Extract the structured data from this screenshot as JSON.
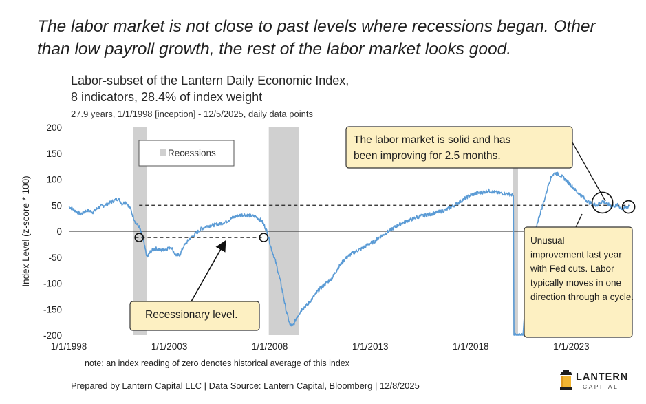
{
  "headline": "The labor market is not close to past levels where recessions began. Other than low payroll growth, the rest of the labor market looks good.",
  "subtitle": {
    "line1": "Labor-subset of the Lantern Daily Economic Index,",
    "line2": "8 indicators, 28.4% of index weight",
    "line3": "27.9 years, 1/1/1998 [inception] - 12/5/2025, daily data points"
  },
  "note": "note: an index reading of zero denotes historical average of this index",
  "footer": "Prepared by Lantern Capital LLC | Data Source: Lantern Capital, Bloomberg | 12/8/2025",
  "logo": {
    "top": "LANTERN",
    "bottom": "CAPITAL"
  },
  "chart_data": {
    "type": "line",
    "ylabel": "Index Level (z-score * 100)",
    "ylim": [
      -200,
      200
    ],
    "yticks": [
      200,
      150,
      100,
      50,
      0,
      -50,
      -100,
      -150,
      -200
    ],
    "xlim": [
      1998.0,
      2026.0
    ],
    "xticks": [
      {
        "label": "1/1/1998",
        "x": 1998.0
      },
      {
        "label": "1/1/2003",
        "x": 2003.0
      },
      {
        "label": "1/1/2008",
        "x": 2008.0
      },
      {
        "label": "1/1/2013",
        "x": 2013.0
      },
      {
        "label": "1/1/2018",
        "x": 2018.0
      },
      {
        "label": "1/1/2023",
        "x": 2023.0
      }
    ],
    "line_color": "#5b9bd5",
    "recession_color": "#d0d0d0",
    "grid": false,
    "legend": {
      "position": "top-left",
      "label": "Recessions"
    },
    "recessions": [
      [
        2001.2,
        2001.9
      ],
      [
        2007.95,
        2009.45
      ],
      [
        2020.1,
        2020.35
      ]
    ],
    "reference_lines": [
      {
        "y": 50,
        "x_from": 2001.5,
        "x_to": 2025.9,
        "style": "dashed"
      },
      {
        "y": -12,
        "x_from": 2001.3,
        "x_to": 2007.6,
        "style": "dashed"
      }
    ],
    "series": [
      {
        "values": [
          [
            1998.0,
            48
          ],
          [
            1998.3,
            40
          ],
          [
            1998.6,
            33
          ],
          [
            1998.9,
            40
          ],
          [
            1999.2,
            37
          ],
          [
            1999.5,
            46
          ],
          [
            1999.9,
            52
          ],
          [
            2000.2,
            58
          ],
          [
            2000.45,
            63
          ],
          [
            2000.65,
            53
          ],
          [
            2000.85,
            56
          ],
          [
            2001.05,
            45
          ],
          [
            2001.2,
            28
          ],
          [
            2001.35,
            15
          ],
          [
            2001.5,
            8
          ],
          [
            2001.62,
            -5
          ],
          [
            2001.72,
            -20
          ],
          [
            2001.82,
            -38
          ],
          [
            2001.9,
            -50
          ],
          [
            2002.05,
            -40
          ],
          [
            2002.3,
            -33
          ],
          [
            2002.6,
            -37
          ],
          [
            2002.9,
            -33
          ],
          [
            2003.1,
            -30
          ],
          [
            2003.3,
            -45
          ],
          [
            2003.5,
            -47
          ],
          [
            2003.7,
            -30
          ],
          [
            2004.0,
            -15
          ],
          [
            2004.3,
            -5
          ],
          [
            2004.6,
            5
          ],
          [
            2004.9,
            10
          ],
          [
            2005.2,
            12
          ],
          [
            2005.5,
            14
          ],
          [
            2005.8,
            18
          ],
          [
            2006.1,
            25
          ],
          [
            2006.4,
            30
          ],
          [
            2006.7,
            32
          ],
          [
            2007.0,
            30
          ],
          [
            2007.3,
            28
          ],
          [
            2007.6,
            20
          ],
          [
            2007.8,
            5
          ],
          [
            2007.9,
            -5
          ],
          [
            2008.05,
            -30
          ],
          [
            2008.3,
            -60
          ],
          [
            2008.55,
            -100
          ],
          [
            2008.8,
            -150
          ],
          [
            2009.0,
            -180
          ],
          [
            2009.15,
            -182
          ],
          [
            2009.35,
            -165
          ],
          [
            2009.6,
            -150
          ],
          [
            2009.9,
            -140
          ],
          [
            2010.2,
            -125
          ],
          [
            2010.5,
            -110
          ],
          [
            2010.8,
            -100
          ],
          [
            2011.1,
            -90
          ],
          [
            2011.4,
            -70
          ],
          [
            2011.7,
            -55
          ],
          [
            2012.0,
            -45
          ],
          [
            2012.3,
            -38
          ],
          [
            2012.6,
            -33
          ],
          [
            2012.9,
            -25
          ],
          [
            2013.2,
            -20
          ],
          [
            2013.5,
            -10
          ],
          [
            2013.8,
            -3
          ],
          [
            2014.1,
            5
          ],
          [
            2014.4,
            12
          ],
          [
            2014.7,
            18
          ],
          [
            2015.0,
            22
          ],
          [
            2015.3,
            27
          ],
          [
            2015.6,
            30
          ],
          [
            2015.9,
            32
          ],
          [
            2016.2,
            35
          ],
          [
            2016.5,
            38
          ],
          [
            2016.8,
            42
          ],
          [
            2017.1,
            48
          ],
          [
            2017.4,
            55
          ],
          [
            2017.7,
            63
          ],
          [
            2018.0,
            70
          ],
          [
            2018.3,
            73
          ],
          [
            2018.6,
            75
          ],
          [
            2018.9,
            78
          ],
          [
            2019.2,
            75
          ],
          [
            2019.5,
            73
          ],
          [
            2019.8,
            72
          ],
          [
            2020.05,
            70
          ],
          [
            2020.12,
            68
          ],
          [
            2020.15,
            -200
          ],
          [
            2020.6,
            -200
          ],
          [
            2020.72,
            -130
          ],
          [
            2020.85,
            -80
          ],
          [
            2021.0,
            -50
          ],
          [
            2021.15,
            -20
          ],
          [
            2021.3,
            15
          ],
          [
            2021.5,
            40
          ],
          [
            2021.7,
            65
          ],
          [
            2021.9,
            95
          ],
          [
            2022.05,
            108
          ],
          [
            2022.2,
            112
          ],
          [
            2022.45,
            108
          ],
          [
            2022.7,
            100
          ],
          [
            2023.0,
            88
          ],
          [
            2023.3,
            75
          ],
          [
            2023.6,
            65
          ],
          [
            2023.9,
            55
          ],
          [
            2024.1,
            52
          ],
          [
            2024.3,
            50
          ],
          [
            2024.55,
            58
          ],
          [
            2024.8,
            52
          ],
          [
            2025.05,
            48
          ],
          [
            2025.3,
            50
          ],
          [
            2025.55,
            43
          ],
          [
            2025.75,
            46
          ],
          [
            2025.93,
            50
          ]
        ]
      }
    ],
    "annotations": [
      {
        "text": "The labor market is solid and has been improving for 2.5 months.",
        "type": "callout"
      },
      {
        "text": "Unusual improvement last year with Fed cuts. Labor typically moves in one direction through a cycle.",
        "type": "callout"
      },
      {
        "text": "Recessionary level.",
        "type": "callout"
      }
    ]
  }
}
